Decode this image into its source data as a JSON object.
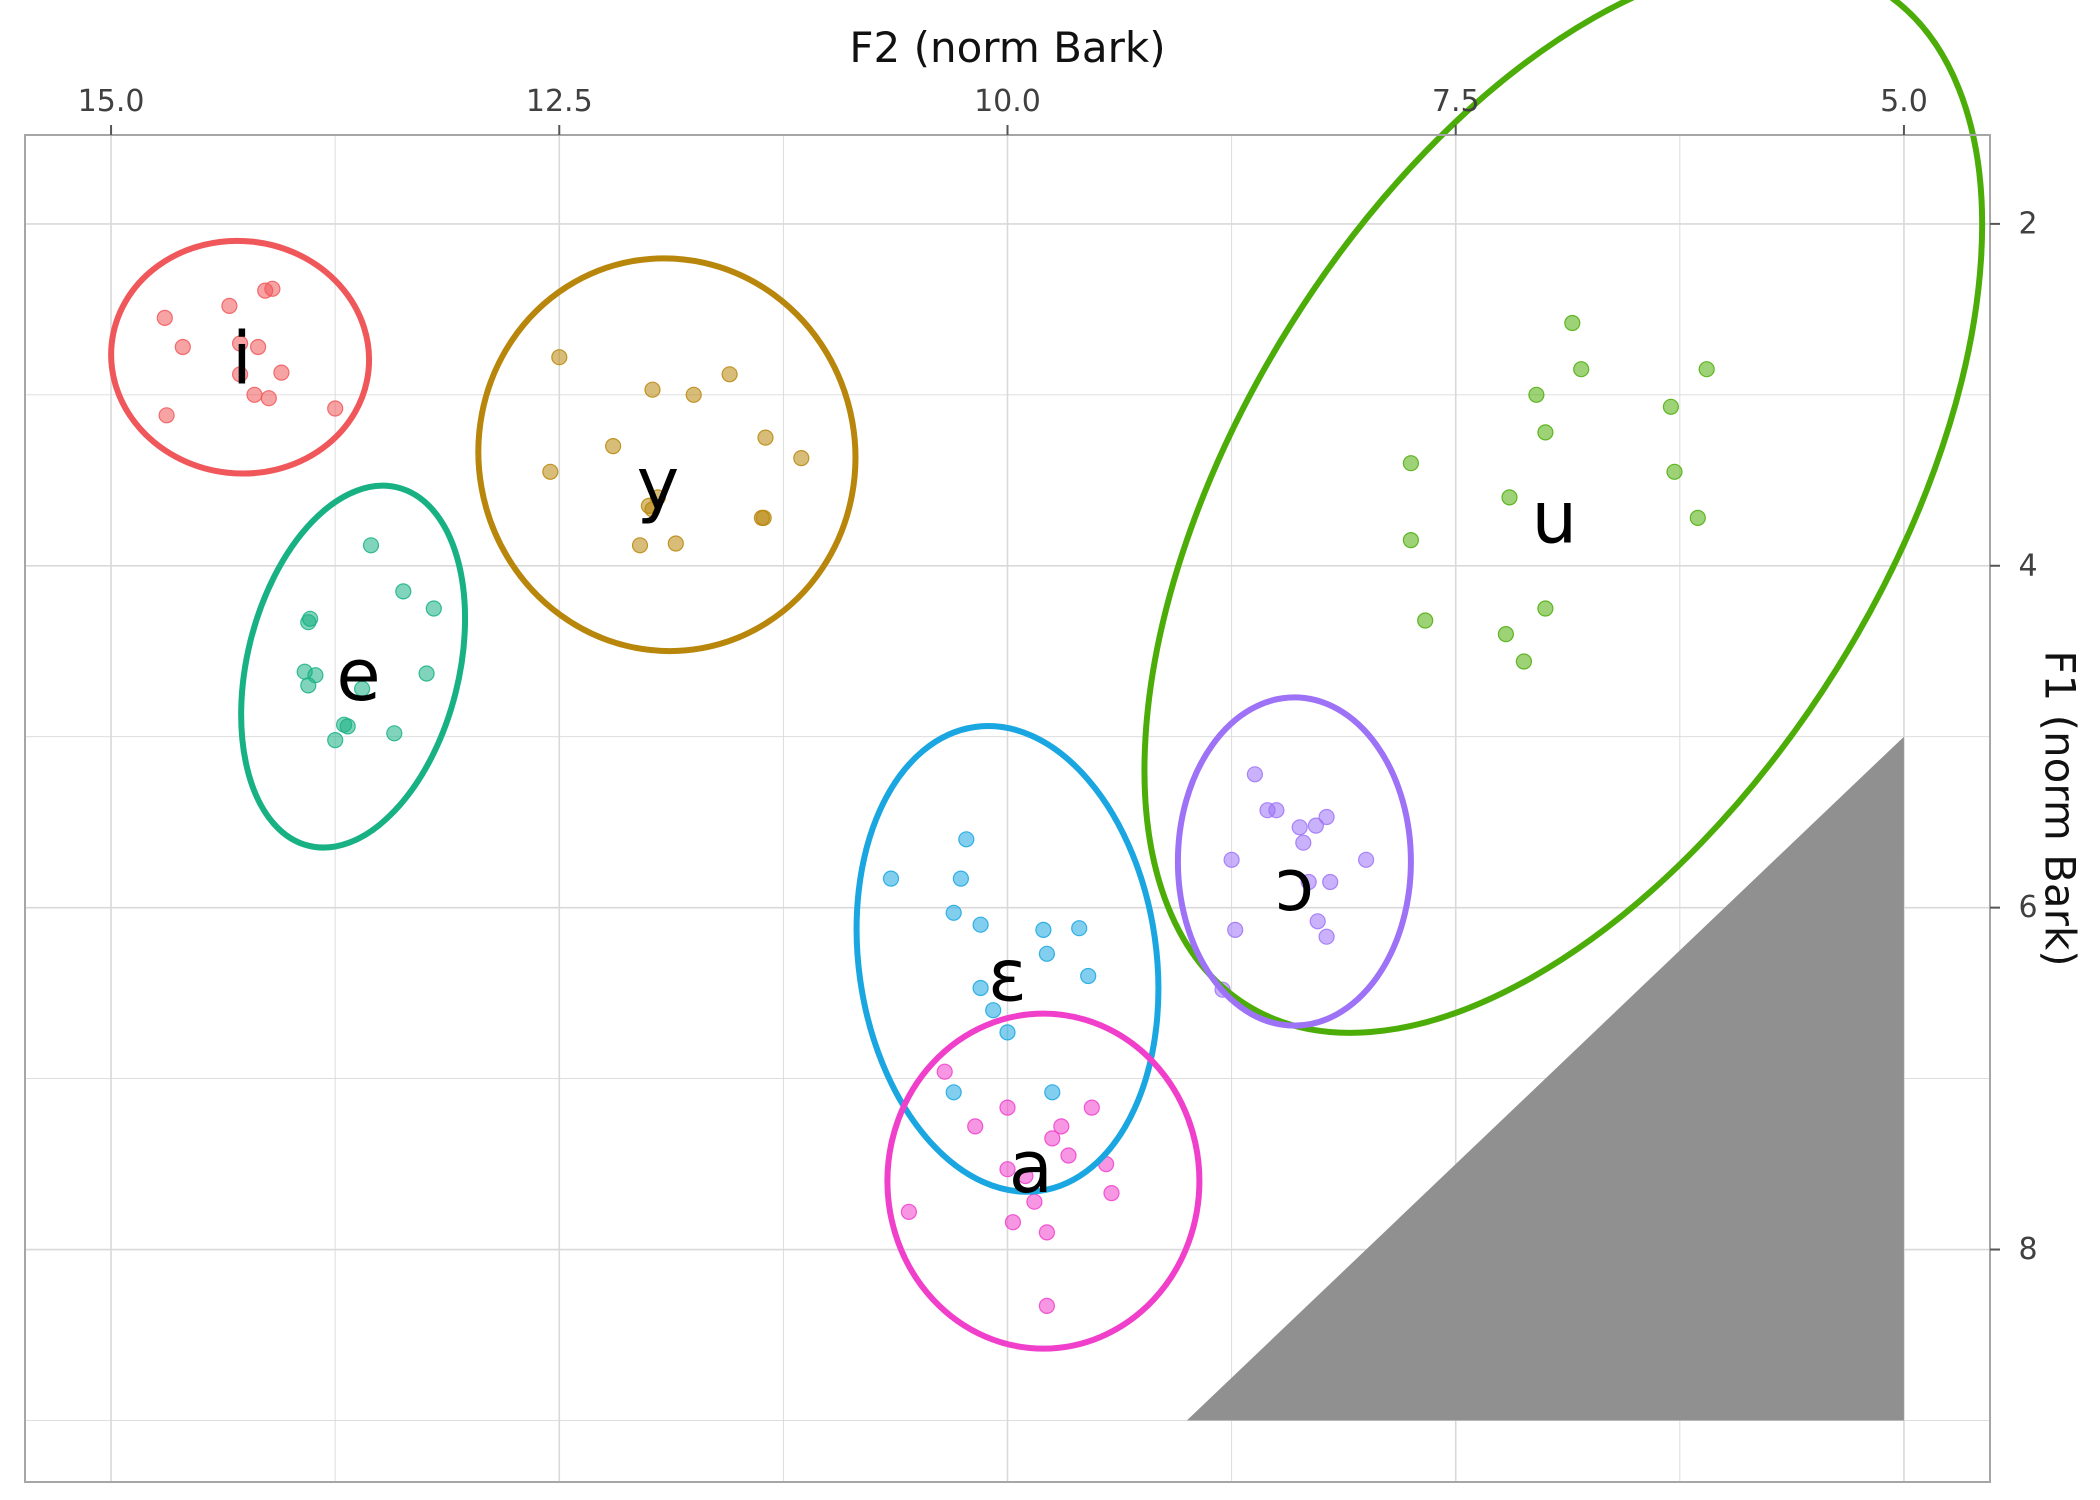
{
  "chart_data": {
    "type": "scatter",
    "title": "",
    "xlabel": "F2 (norm Bark)",
    "ylabel": "F1 (norm Bark)",
    "x_axis": {
      "position": "top",
      "reversed": true,
      "range": [
        15.48,
        4.52
      ],
      "ticks": [
        15.0,
        12.5,
        10.0,
        7.5,
        5.0
      ],
      "tick_labels": [
        "15.0",
        "12.5",
        "10.0",
        "7.5",
        "5.0"
      ]
    },
    "y_axis": {
      "position": "right",
      "reversed": true,
      "range": [
        1.48,
        9.36
      ],
      "ticks": [
        2,
        4,
        6,
        8
      ],
      "tick_labels": [
        "2",
        "4",
        "6",
        "8"
      ]
    },
    "grid": true,
    "legend": "none",
    "colors": {
      "i": "#F0575A",
      "e": "#17B184",
      "y": "#B8860B",
      "u": "#4CAD08",
      "ɔ": "#9D72F7",
      "ɛ": "#19A6E1",
      "a": "#F03FCB",
      "triangle": "#909090",
      "panel_border": "#A6A6A6",
      "grid": "#D9D9D9"
    },
    "triangle": [
      [
        9.0,
        9.0
      ],
      [
        5.0,
        9.0
      ],
      [
        5.0,
        5.0
      ]
    ],
    "series": [
      {
        "name": "i",
        "label_pos": [
          14.27,
          2.82
        ],
        "ellipse": {
          "cx": 14.28,
          "cy": 2.78,
          "rx": 0.72,
          "ry": 0.68,
          "rot": 6
        },
        "points": [
          [
            14.7,
            2.55
          ],
          [
            14.6,
            2.72
          ],
          [
            14.69,
            3.12
          ],
          [
            14.34,
            2.48
          ],
          [
            14.28,
            2.7
          ],
          [
            14.28,
            2.88
          ],
          [
            14.18,
            2.72
          ],
          [
            14.14,
            2.39
          ],
          [
            14.12,
            3.02
          ],
          [
            14.2,
            3.0
          ],
          [
            14.05,
            2.87
          ],
          [
            13.75,
            3.08
          ],
          [
            14.1,
            2.38
          ]
        ]
      },
      {
        "name": "e",
        "label_pos": [
          13.62,
          4.67
        ],
        "ellipse": {
          "cx": 13.65,
          "cy": 4.59,
          "rx": 0.59,
          "ry": 1.08,
          "rot": 14
        },
        "points": [
          [
            13.55,
            3.88
          ],
          [
            13.37,
            4.15
          ],
          [
            13.2,
            4.25
          ],
          [
            13.89,
            4.31
          ],
          [
            13.9,
            4.33
          ],
          [
            13.92,
            4.62
          ],
          [
            13.9,
            4.7
          ],
          [
            13.86,
            4.64
          ],
          [
            13.6,
            4.72
          ],
          [
            13.24,
            4.63
          ],
          [
            13.68,
            4.94
          ],
          [
            13.7,
            4.93
          ],
          [
            13.75,
            5.02
          ],
          [
            13.42,
            4.98
          ]
        ]
      },
      {
        "name": "y",
        "label_pos": [
          11.95,
          3.55
        ],
        "ellipse": {
          "cx": 11.9,
          "cy": 3.35,
          "rx": 1.05,
          "ry": 1.15,
          "rot": -10
        },
        "points": [
          [
            12.5,
            2.78
          ],
          [
            12.55,
            3.45
          ],
          [
            12.2,
            3.3
          ],
          [
            12.0,
            3.65
          ],
          [
            11.98,
            2.97
          ],
          [
            11.98,
            3.67
          ],
          [
            11.75,
            3.0
          ],
          [
            11.55,
            2.88
          ],
          [
            11.35,
            3.25
          ],
          [
            11.15,
            3.37
          ],
          [
            11.36,
            3.72
          ],
          [
            11.37,
            3.72
          ],
          [
            11.85,
            3.87
          ],
          [
            11.95,
            3.6
          ],
          [
            12.05,
            3.88
          ]
        ]
      },
      {
        "name": "u",
        "label_pos": [
          6.95,
          3.75
        ],
        "ellipse": {
          "cx": 6.9,
          "cy": 3.6,
          "rx": 1.8,
          "ry": 3.5,
          "rot": 32
        },
        "points": [
          [
            6.85,
            2.58
          ],
          [
            6.8,
            2.85
          ],
          [
            7.05,
            3.0
          ],
          [
            7.0,
            3.22
          ],
          [
            6.1,
            2.85
          ],
          [
            6.3,
            3.07
          ],
          [
            6.28,
            3.45
          ],
          [
            6.15,
            3.72
          ],
          [
            7.75,
            3.4
          ],
          [
            7.2,
            3.6
          ],
          [
            7.75,
            3.85
          ],
          [
            7.67,
            4.32
          ],
          [
            7.22,
            4.4
          ],
          [
            7.0,
            4.25
          ],
          [
            7.12,
            4.56
          ]
        ]
      },
      {
        "name": "ɔ",
        "label_pos": [
          8.4,
          5.9
        ],
        "ellipse": {
          "cx": 8.4,
          "cy": 5.73,
          "rx": 0.65,
          "ry": 0.96,
          "rot": 0
        },
        "points": [
          [
            8.62,
            5.22
          ],
          [
            8.55,
            5.43
          ],
          [
            8.5,
            5.43
          ],
          [
            8.37,
            5.53
          ],
          [
            8.28,
            5.52
          ],
          [
            8.22,
            5.47
          ],
          [
            8.35,
            5.62
          ],
          [
            8.75,
            5.72
          ],
          [
            8.32,
            5.85
          ],
          [
            8.2,
            5.85
          ],
          [
            8.0,
            5.72
          ],
          [
            8.27,
            6.08
          ],
          [
            8.22,
            6.17
          ],
          [
            8.73,
            6.13
          ],
          [
            8.8,
            6.48
          ]
        ]
      },
      {
        "name": "ɛ",
        "label_pos": [
          10.0,
          6.43
        ],
        "ellipse": {
          "cx": 10.0,
          "cy": 6.3,
          "rx": 0.83,
          "ry": 1.37,
          "rot": -8
        },
        "points": [
          [
            10.23,
            5.6
          ],
          [
            10.65,
            5.83
          ],
          [
            10.26,
            5.83
          ],
          [
            10.3,
            6.03
          ],
          [
            10.15,
            6.1
          ],
          [
            9.8,
            6.13
          ],
          [
            9.6,
            6.12
          ],
          [
            9.78,
            6.27
          ],
          [
            9.55,
            6.4
          ],
          [
            10.15,
            6.47
          ],
          [
            10.08,
            6.6
          ],
          [
            10.0,
            6.73
          ],
          [
            10.3,
            7.08
          ],
          [
            9.75,
            7.08
          ]
        ]
      },
      {
        "name": "a",
        "label_pos": [
          9.87,
          7.55
        ],
        "ellipse": {
          "cx": 9.8,
          "cy": 7.6,
          "rx": 0.87,
          "ry": 0.98,
          "rot": 0
        },
        "points": [
          [
            10.35,
            6.96
          ],
          [
            10.0,
            7.17
          ],
          [
            10.18,
            7.28
          ],
          [
            9.7,
            7.28
          ],
          [
            9.75,
            7.35
          ],
          [
            9.53,
            7.17
          ],
          [
            9.66,
            7.45
          ],
          [
            9.45,
            7.5
          ],
          [
            10.0,
            7.53
          ],
          [
            9.9,
            7.57
          ],
          [
            9.42,
            7.67
          ],
          [
            10.55,
            7.78
          ],
          [
            9.85,
            7.72
          ],
          [
            9.97,
            7.84
          ],
          [
            9.78,
            7.9
          ],
          [
            9.78,
            8.33
          ]
        ]
      }
    ]
  }
}
